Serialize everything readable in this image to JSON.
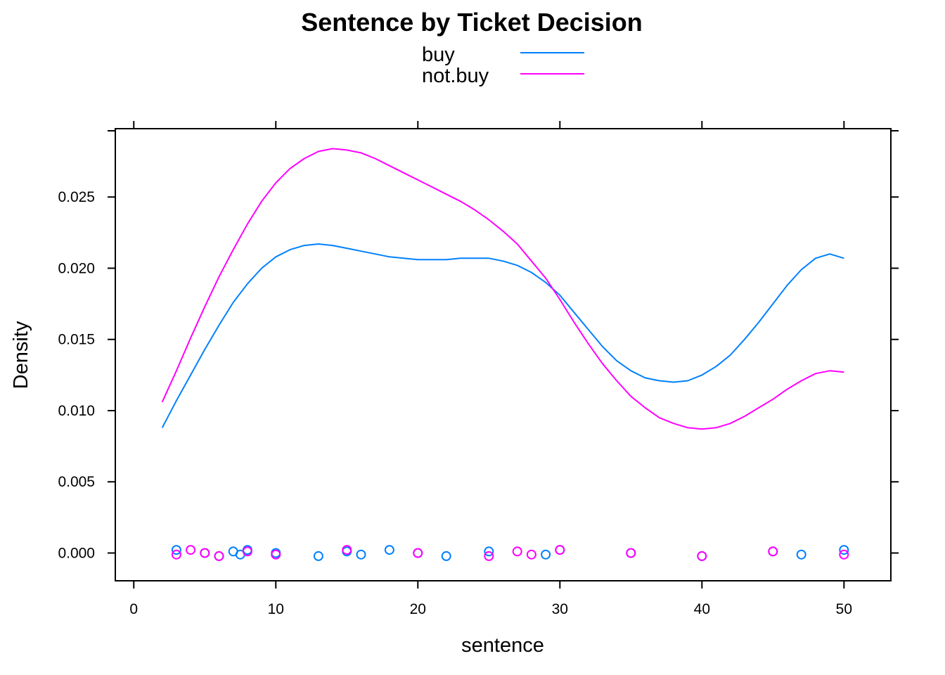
{
  "chart_data": {
    "type": "line",
    "title": "Sentence by Ticket Decision",
    "xlabel": "sentence",
    "ylabel": "Density",
    "xlim": [
      -1.3,
      53.3
    ],
    "ylim": [
      -0.00195,
      0.0298
    ],
    "x_ticks": [
      0,
      10,
      20,
      30,
      40,
      50
    ],
    "x_tick_labels": [
      "0",
      "10",
      "20",
      "30",
      "40",
      "50"
    ],
    "y_ticks": [
      0.0,
      0.005,
      0.01,
      0.015,
      0.02,
      0.025
    ],
    "y_tick_labels": [
      "0.000",
      "0.005",
      "0.010",
      "0.015",
      "0.020",
      "0.025"
    ],
    "grid": false,
    "legend_position": "top",
    "series": [
      {
        "name": "buy",
        "color": "#0080ff",
        "x": [
          2,
          3,
          4,
          5,
          6,
          7,
          8,
          9,
          10,
          11,
          12,
          13,
          14,
          15,
          16,
          17,
          18,
          19,
          20,
          21,
          22,
          23,
          24,
          25,
          26,
          27,
          28,
          29,
          30,
          31,
          32,
          33,
          34,
          35,
          36,
          37,
          38,
          39,
          40,
          41,
          42,
          43,
          44,
          45,
          46,
          47,
          48,
          49,
          50
        ],
        "y": [
          0.0088,
          0.0107,
          0.0125,
          0.0143,
          0.016,
          0.0176,
          0.0189,
          0.02,
          0.0208,
          0.0213,
          0.0216,
          0.0217,
          0.0216,
          0.0214,
          0.0212,
          0.021,
          0.0208,
          0.0207,
          0.0206,
          0.0206,
          0.0206,
          0.0207,
          0.0207,
          0.0207,
          0.0205,
          0.0202,
          0.0197,
          0.019,
          0.0181,
          0.0169,
          0.0157,
          0.0145,
          0.0135,
          0.0128,
          0.0123,
          0.0121,
          0.012,
          0.0121,
          0.0125,
          0.0131,
          0.0139,
          0.015,
          0.0162,
          0.0175,
          0.0188,
          0.0199,
          0.0207,
          0.021,
          0.0207
        ],
        "rug_x": [
          3,
          5,
          6,
          7,
          7.5,
          8,
          10,
          13,
          15,
          16,
          18,
          20,
          22,
          25,
          29,
          30,
          35,
          40,
          45,
          47,
          50
        ]
      },
      {
        "name": "not.buy",
        "color": "#ff00ff",
        "x": [
          2,
          3,
          4,
          5,
          6,
          7,
          8,
          9,
          10,
          11,
          12,
          13,
          14,
          15,
          16,
          17,
          18,
          19,
          20,
          21,
          22,
          23,
          24,
          25,
          26,
          27,
          28,
          29,
          30,
          31,
          32,
          33,
          34,
          35,
          36,
          37,
          38,
          39,
          40,
          41,
          42,
          43,
          44,
          45,
          46,
          47,
          48,
          49,
          50
        ],
        "y": [
          0.0106,
          0.0128,
          0.0151,
          0.0173,
          0.0194,
          0.0213,
          0.0231,
          0.0247,
          0.026,
          0.027,
          0.0277,
          0.0282,
          0.0284,
          0.0283,
          0.0281,
          0.0277,
          0.0272,
          0.0267,
          0.0262,
          0.0257,
          0.0252,
          0.0247,
          0.0241,
          0.0234,
          0.0226,
          0.0217,
          0.0205,
          0.0193,
          0.0178,
          0.0162,
          0.0147,
          0.0133,
          0.0121,
          0.011,
          0.0102,
          0.0095,
          0.0091,
          0.0088,
          0.0087,
          0.0088,
          0.0091,
          0.0096,
          0.0102,
          0.0108,
          0.0115,
          0.0121,
          0.0126,
          0.0128,
          0.0127
        ],
        "rug_x": [
          3,
          4,
          5,
          6,
          8,
          10,
          15,
          20,
          25,
          27,
          28,
          30,
          35,
          40,
          45,
          50
        ]
      }
    ]
  }
}
